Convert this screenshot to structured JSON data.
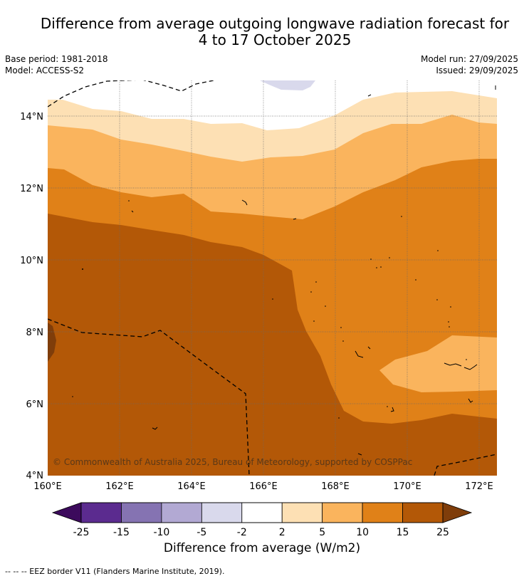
{
  "title": {
    "line1": "Difference from average outgoing longwave radiation forecast for",
    "line2": "4 to 17 October 2025"
  },
  "meta": {
    "base_period": "Base period: 1981-2018",
    "model": "Model: ACCESS-S2",
    "model_run": "Model run: 27/09/2025",
    "issued": "Issued: 29/09/2025"
  },
  "map": {
    "lon_range": [
      160,
      172.5
    ],
    "lat_range": [
      4,
      15
    ],
    "lon_ticks": [
      160,
      162,
      164,
      166,
      168,
      170,
      172
    ],
    "lat_ticks": [
      4,
      6,
      8,
      10,
      12,
      14
    ],
    "lon_labels": [
      "160°E",
      "162°E",
      "164°E",
      "166°E",
      "168°E",
      "170°E",
      "172°E"
    ],
    "lat_labels": [
      "4°N",
      "6°N",
      "8°N",
      "10°N",
      "12°N",
      "14°N"
    ],
    "copyright": "© Commonwealth of Australia 2025, Bureau of Meteorology, supported by COSPPac"
  },
  "colorbar": {
    "levels": [
      "-25",
      "-15",
      "-10",
      "-5",
      "-2",
      "2",
      "5",
      "10",
      "15",
      "25"
    ],
    "colors": [
      "#5b2b8f",
      "#8573b2",
      "#b2a9d3",
      "#d9d9ec",
      "#ffffff",
      "#fde0b4",
      "#fab45d",
      "#e08118",
      "#b35807"
    ],
    "under_color": "#3c0a5c",
    "over_color": "#7f3d0a",
    "label": "Difference from average (W/m2)"
  },
  "colors": {
    "white": "#ffffff",
    "light_purple": "#d9d9ec",
    "light_orange": "#fde0b4",
    "orange": "#fab45d",
    "dark_orange": "#e08118",
    "brown": "#b35807",
    "dark_brown": "#7f3d0a"
  },
  "footer": "--  --  -- EEZ border V11 (Flanders Marine Institute, 2019)."
}
